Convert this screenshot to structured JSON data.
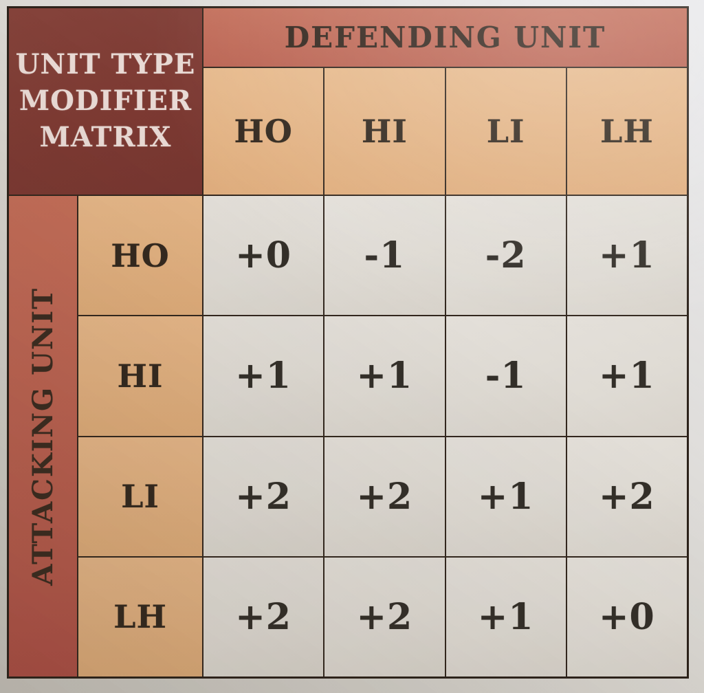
{
  "chart_data": {
    "type": "table",
    "title": "UNIT TYPE MODIFIER MATRIX",
    "title_lines": [
      "UNIT TYPE",
      "MODIFIER",
      "MATRIX"
    ],
    "column_group_label": "DEFENDING UNIT",
    "row_group_label": "ATTACKING UNIT",
    "columns": [
      "HO",
      "HI",
      "LI",
      "LH"
    ],
    "row_labels": [
      "HO",
      "HI",
      "LI",
      "LH"
    ],
    "values": [
      [
        "+0",
        "-1",
        "-2",
        "+1"
      ],
      [
        "+1",
        "+1",
        "-1",
        "+1"
      ],
      [
        "+2",
        "+2",
        "+1",
        "+2"
      ],
      [
        "+2",
        "+2",
        "+1",
        "+0"
      ]
    ]
  },
  "colors": {
    "title_cell_bg": "#7d3a33",
    "group_header_bg": "#bf6a57",
    "unit_header_bg": "#e3b286",
    "data_cell_bg": "#dfdbd4",
    "grid_line": "#32271e",
    "title_text": "#e9dad5",
    "dark_text": "#352c23",
    "page_bg": "#d9d6d0"
  }
}
